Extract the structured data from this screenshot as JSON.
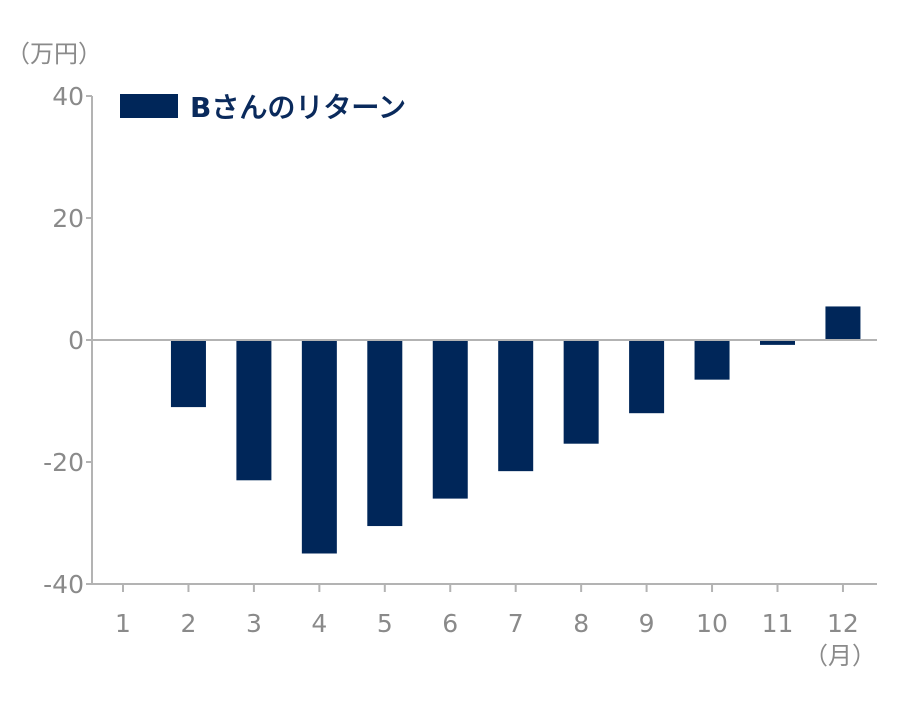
{
  "chart_data": {
    "type": "bar",
    "categories": [
      "1",
      "2",
      "3",
      "4",
      "5",
      "6",
      "7",
      "8",
      "9",
      "10",
      "11",
      "12"
    ],
    "series": [
      {
        "name": "Bさんのリターン",
        "values": [
          0,
          -11,
          -23,
          -35,
          -30.5,
          -26,
          -21.5,
          -17,
          -12,
          -6.5,
          -0.8,
          5.5
        ],
        "color": "#002659"
      }
    ],
    "ylabel": "（万円）",
    "xlabel": "（月）",
    "ylim": [
      -40,
      40
    ],
    "yticks": [
      -40,
      -20,
      0,
      20,
      40
    ],
    "grid": false,
    "legend": "top-left"
  },
  "colors": {
    "axis": "#b3b3b3",
    "tick_text": "#8a8a8a",
    "legend_text": "#0a2a5c"
  }
}
